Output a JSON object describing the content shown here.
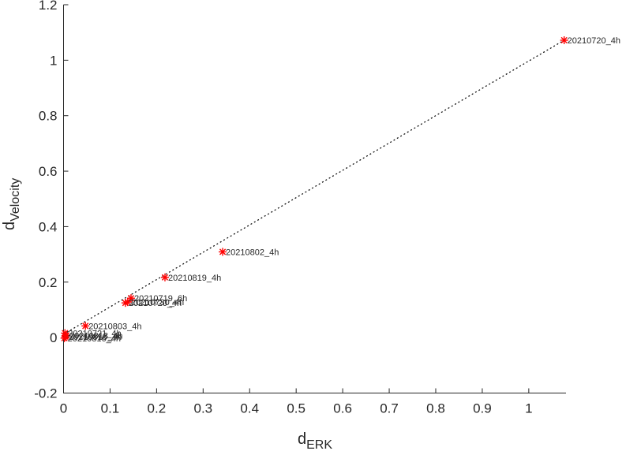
{
  "chart_data": {
    "type": "scatter",
    "xlabel": "d",
    "xlabel_sub": "ERK",
    "ylabel": "d",
    "ylabel_sub": "Velocity",
    "xlim": [
      0,
      1.08
    ],
    "ylim": [
      -0.2,
      1.2
    ],
    "xticks": [
      0,
      0.1,
      0.2,
      0.3,
      0.4,
      0.5,
      0.6,
      0.7,
      0.8,
      0.9,
      1
    ],
    "xtick_labels": [
      "0",
      "0.1",
      "0.2",
      "0.3",
      "0.4",
      "0.5",
      "0.6",
      "0.7",
      "0.8",
      "0.9",
      "1"
    ],
    "yticks": [
      -0.2,
      0,
      0.2,
      0.4,
      0.6,
      0.8,
      1,
      1.2
    ],
    "ytick_labels": [
      "-0.2",
      "0",
      "0.2",
      "0.4",
      "0.6",
      "0.8",
      "1",
      "1.2"
    ],
    "marker": "asterisk",
    "marker_color": "#ff0000",
    "box": "left-and-bottom axes only",
    "grid": false,
    "legend": "none",
    "points": [
      {
        "x": 1.076,
        "y": 1.072,
        "label": "20210720_4h"
      },
      {
        "x": 0.342,
        "y": 0.309,
        "label": "20210802_4h"
      },
      {
        "x": 0.218,
        "y": 0.217,
        "label": "20210819_4h"
      },
      {
        "x": 0.145,
        "y": 0.142,
        "label": "20210719_6h"
      },
      {
        "x": 0.138,
        "y": 0.128,
        "label": "20210730_4h"
      },
      {
        "x": 0.133,
        "y": 0.125,
        "label": "20210720_4h"
      },
      {
        "x": 0.047,
        "y": 0.042,
        "label": "20210803_4h"
      },
      {
        "x": 0.003,
        "y": 0.016,
        "label": "20210721_4h"
      },
      {
        "x": 0.006,
        "y": 0.008,
        "label": "20210813_4h"
      },
      {
        "x": 0.004,
        "y": 0.003,
        "label": "20210818_4h"
      },
      {
        "x": 0.002,
        "y": -0.002,
        "label": "20210816_4h"
      }
    ],
    "trend_line": {
      "style": "dotted",
      "color": "#000000",
      "from": {
        "x": 0.0,
        "y": 0.012
      },
      "to": {
        "x": 1.076,
        "y": 1.072
      }
    }
  }
}
